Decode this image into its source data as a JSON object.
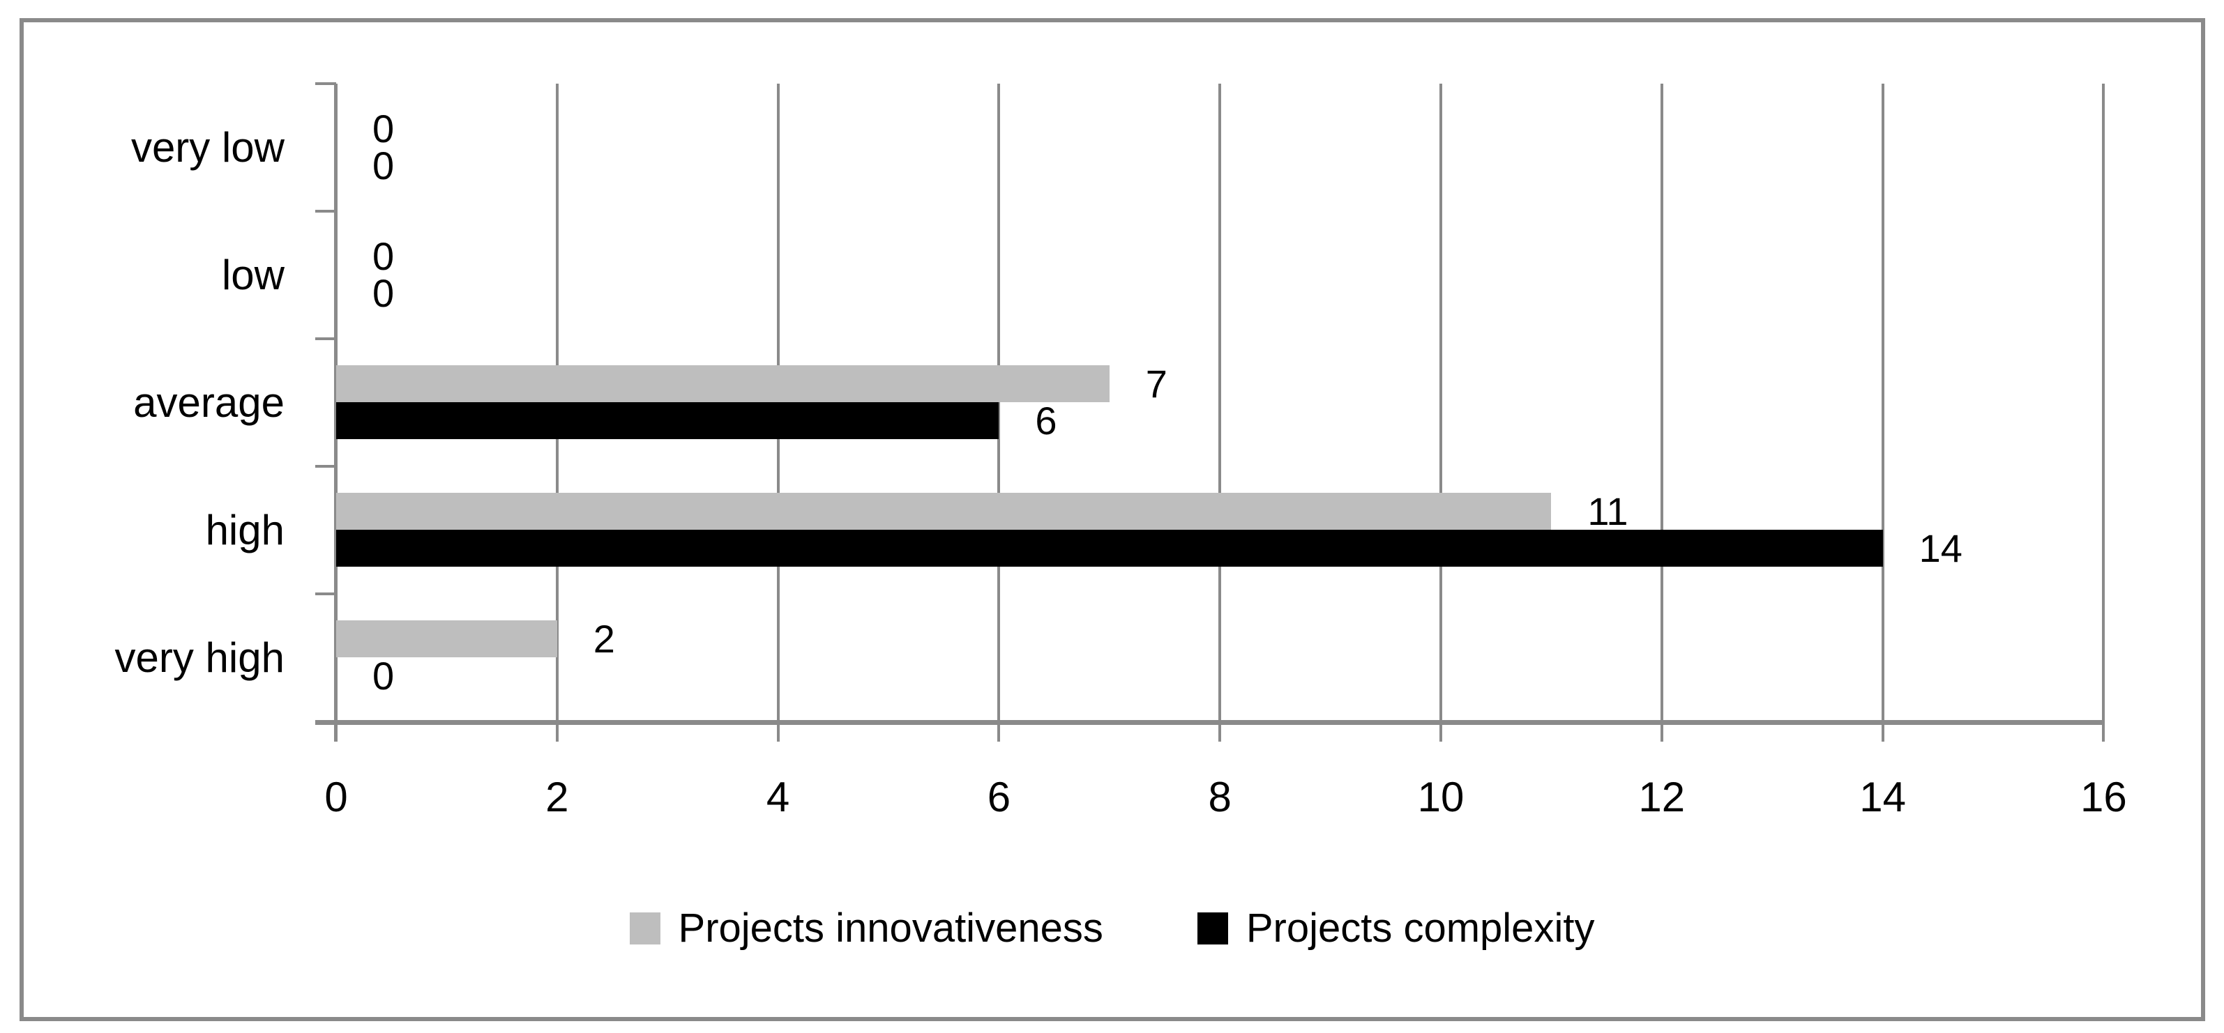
{
  "chart_data": {
    "type": "bar",
    "orientation": "horizontal",
    "title": "",
    "categories": [
      "very low",
      "low",
      "average",
      "high",
      "very high"
    ],
    "series": [
      {
        "name": "Projects innovativeness",
        "color": "#bebebe",
        "values": [
          0,
          0,
          7,
          11,
          2
        ]
      },
      {
        "name": "Projects complexity",
        "color": "#000000",
        "values": [
          0,
          0,
          6,
          14,
          0
        ]
      }
    ],
    "x_axis": {
      "min": 0,
      "max": 16,
      "tick_step": 2,
      "tick_labels": [
        "0",
        "2",
        "4",
        "6",
        "8",
        "10",
        "12",
        "14",
        "16"
      ]
    },
    "data_labels": true,
    "grid": true,
    "legend_position": "bottom"
  },
  "colors": {
    "axis": "#8a8a8a",
    "gridline": "#8a8a8a",
    "border": "#8a8a8a",
    "text": "#000000",
    "background": "#ffffff"
  }
}
